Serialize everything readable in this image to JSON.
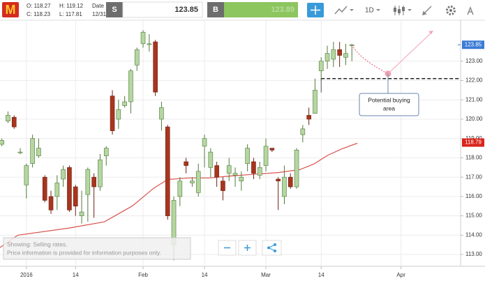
{
  "header": {
    "open": "O: 118.27",
    "high": "H: 119.12",
    "date_label": "Date",
    "close": "C: 118.23",
    "low": "L: 117.81",
    "date": "12/31/",
    "sell_label": "S",
    "sell_price": "123.85",
    "buy_label": "B",
    "buy_price": "123.89",
    "interval": "1D"
  },
  "chart_data": {
    "type": "candlestick",
    "x": [
      -4,
      -3,
      -2,
      -1,
      0,
      1,
      2,
      3,
      4,
      5,
      6,
      7,
      8,
      9,
      10,
      11,
      12,
      13,
      14,
      15,
      16,
      17,
      18,
      19,
      20,
      21,
      22,
      23,
      24,
      25,
      26,
      27,
      28,
      29,
      30,
      31,
      32,
      33,
      34,
      35,
      36,
      37,
      38,
      39,
      40,
      41,
      42,
      43,
      44,
      45,
      46,
      47,
      48,
      49,
      50,
      51,
      52,
      53
    ],
    "open": [
      118.7,
      119.9,
      120.1,
      118.3,
      116.6,
      117.7,
      118.1,
      117.0,
      116.0,
      116.0,
      116.9,
      117.5,
      116.5,
      115.0,
      116.1,
      117.0,
      116.5,
      118.1,
      121.2,
      120.0,
      120.7,
      120.9,
      122.8,
      123.9,
      123.9,
      124.0,
      120.0,
      119.6,
      113.5,
      116.0,
      117.8,
      116.7,
      116.2,
      118.6,
      117.5,
      117.6,
      116.8,
      117.2,
      117.1,
      116.8,
      117.7,
      117.8,
      117.1,
      117.6,
      118.5,
      116.9,
      116.0,
      117.0,
      116.5,
      119.2,
      120.2,
      120.3,
      122.5,
      123.0,
      123.1,
      123.6,
      123.2,
      123.8
    ],
    "high": [
      119.0,
      120.4,
      120.2,
      118.5,
      117.7,
      119.2,
      119.0,
      117.1,
      116.3,
      117.1,
      117.6,
      117.6,
      116.6,
      116.3,
      117.5,
      117.2,
      118.2,
      118.6,
      121.5,
      121.0,
      121.2,
      122.6,
      123.7,
      124.6,
      124.4,
      124.1,
      120.9,
      119.7,
      116.0,
      117.0,
      118.0,
      117.0,
      117.7,
      119.2,
      118.5,
      117.8,
      117.0,
      118.0,
      117.5,
      117.3,
      118.7,
      118.0,
      117.8,
      119.0,
      118.5,
      117.0,
      117.6,
      117.2,
      118.5,
      119.7,
      120.6,
      122.1,
      123.2,
      123.8,
      124.0,
      124.0,
      123.9,
      123.9
    ],
    "low": [
      118.6,
      119.8,
      119.5,
      118.2,
      115.9,
      117.5,
      118.0,
      115.7,
      115.1,
      115.3,
      116.5,
      115.2,
      115.0,
      114.6,
      114.7,
      114.9,
      116.3,
      117.6,
      119.2,
      119.5,
      120.6,
      120.3,
      122.5,
      123.7,
      123.5,
      121.2,
      119.4,
      114.8,
      112.7,
      115.5,
      117.2,
      116.5,
      116.0,
      117.5,
      117.0,
      116.5,
      115.8,
      116.8,
      116.5,
      116.3,
      117.3,
      116.9,
      116.9,
      117.3,
      118.3,
      115.3,
      115.6,
      116.4,
      116.4,
      118.8,
      119.7,
      120.3,
      122.0,
      122.6,
      122.7,
      122.7,
      122.8,
      123.0
    ],
    "close": [
      118.9,
      120.2,
      119.6,
      118.3,
      117.6,
      119.0,
      118.5,
      115.8,
      115.3,
      116.7,
      117.4,
      115.3,
      115.5,
      115.2,
      117.4,
      116.5,
      117.9,
      118.5,
      119.4,
      120.5,
      120.9,
      122.5,
      123.6,
      124.5,
      123.9,
      121.4,
      120.6,
      115.0,
      115.8,
      116.8,
      117.6,
      116.8,
      117.3,
      119.0,
      118.3,
      117.0,
      116.3,
      117.6,
      117.2,
      117.0,
      118.5,
      117.2,
      117.5,
      118.6,
      118.4,
      116.8,
      117.0,
      116.5,
      118.4,
      119.5,
      120.0,
      121.5,
      123.0,
      123.4,
      123.6,
      123.3,
      123.4,
      123.85
    ],
    "up_color": "#b5d6a0",
    "down_color": "#a8351e",
    "moving_average": {
      "color": "#d9534f",
      "x": [
        -4.3,
        -1.4,
        7,
        12.7,
        17.3,
        20.7,
        23,
        26.4,
        29.8,
        33.2,
        36.6,
        41.1,
        44.5,
        46.8,
        49.1,
        51.4,
        53.9
      ],
      "values": [
        113.36,
        114.0,
        114.37,
        114.69,
        115.52,
        116.42,
        116.88,
        116.96,
        116.96,
        117.06,
        117.14,
        117.24,
        117.39,
        117.68,
        118.14,
        118.47,
        118.76
      ]
    },
    "xlim": [
      -4.3,
      70.7
    ],
    "xticks": [
      {
        "value": 0,
        "label": "2016"
      },
      {
        "value": 8,
        "label": "14"
      },
      {
        "value": 19,
        "label": "Feb"
      },
      {
        "value": 29,
        "label": "14"
      },
      {
        "value": 39,
        "label": "Mar"
      },
      {
        "value": 48,
        "label": "14"
      },
      {
        "value": 61,
        "label": "Apr"
      }
    ],
    "ylim": [
      112.39,
      125.12
    ],
    "yticks": [
      {
        "value": 113,
        "label": "113.00"
      },
      {
        "value": 114,
        "label": "114.00"
      },
      {
        "value": 115,
        "label": "115.00"
      },
      {
        "value": 116,
        "label": "116.00"
      },
      {
        "value": 117,
        "label": "117.00"
      },
      {
        "value": 118,
        "label": "118.00"
      },
      {
        "value": 119,
        "label": "119.00"
      },
      {
        "value": 120,
        "label": "120.00"
      },
      {
        "value": 121,
        "label": "121.00"
      },
      {
        "value": 122,
        "label": "122.00"
      },
      {
        "value": 123,
        "label": "123.00"
      }
    ],
    "last_price": 123.85,
    "average_price": 118.79,
    "buy_level": 122.1,
    "grid": true,
    "annotation": [
      "Potential buying",
      "area"
    ],
    "notice": [
      "Showing: Selling rates.",
      "Price information is provided for information purposes only."
    ]
  }
}
